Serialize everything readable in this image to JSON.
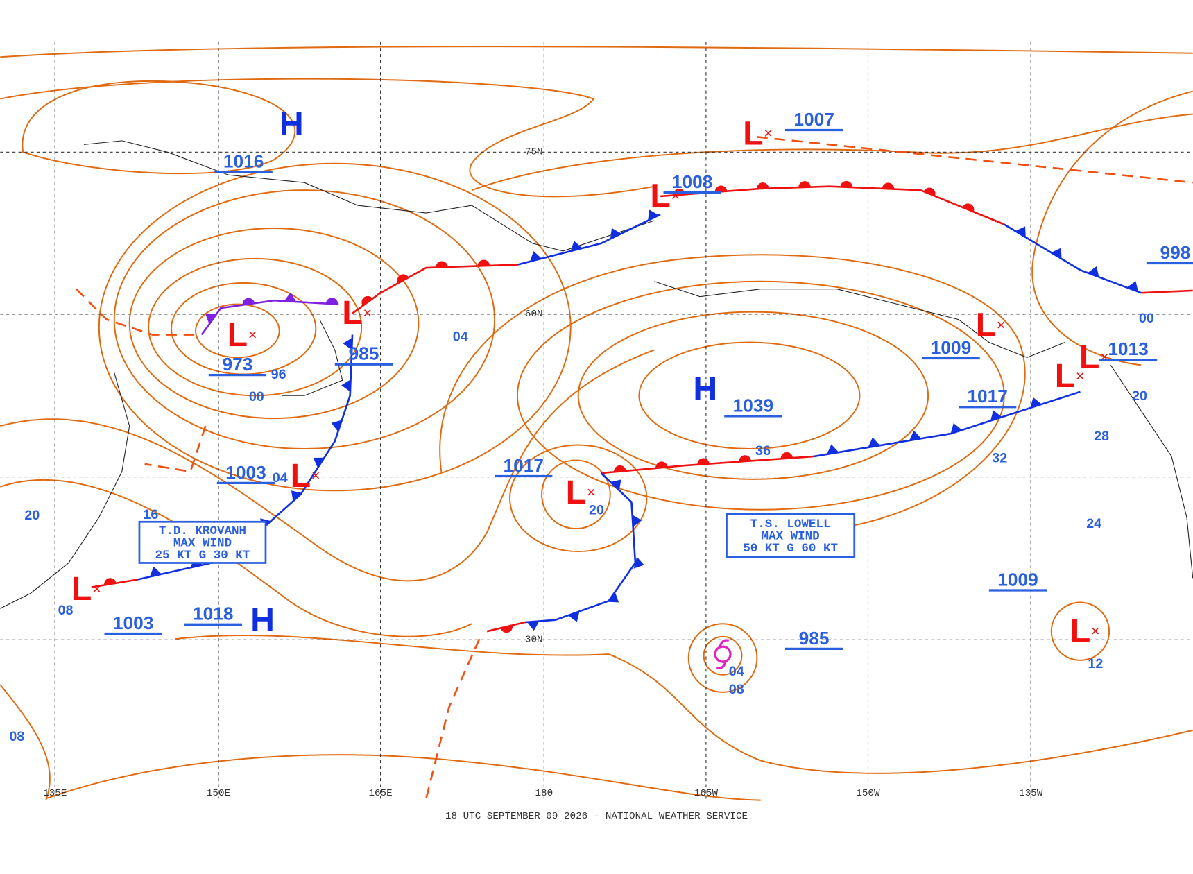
{
  "map": {
    "footer": "18 UTC SEPTEMBER 09 2026 - NATIONAL WEATHER SERVICE",
    "longitudes": [
      "135E",
      "150E",
      "165E",
      "180",
      "165W",
      "150W",
      "135W"
    ],
    "latitudes": [
      "75N",
      "60N",
      "30N"
    ],
    "centers": [
      "H",
      "L",
      "L",
      "L",
      "L",
      "L",
      "L",
      "H",
      "L",
      "L",
      "L",
      "L",
      "H",
      "L"
    ],
    "pressures": [
      "1016",
      "1007",
      "1008",
      "985",
      "973",
      "1003",
      "1017",
      "1039",
      "1009",
      "1017",
      "1013",
      "1003",
      "1018",
      "1009",
      "985",
      "998"
    ],
    "isobar_labels": [
      "04",
      "00",
      "96",
      "16",
      "20",
      "36",
      "32",
      "28",
      "24",
      "20",
      "12",
      "08",
      "04",
      "00",
      "20",
      "08",
      "08",
      "04"
    ],
    "storms": [
      {
        "lines": [
          "T.D. KROVANH",
          "MAX WIND",
          "25 KT G 30 KT"
        ]
      },
      {
        "lines": [
          "T.S. LOWELL",
          "MAX WIND",
          "50 KT G 60 KT"
        ]
      }
    ]
  }
}
